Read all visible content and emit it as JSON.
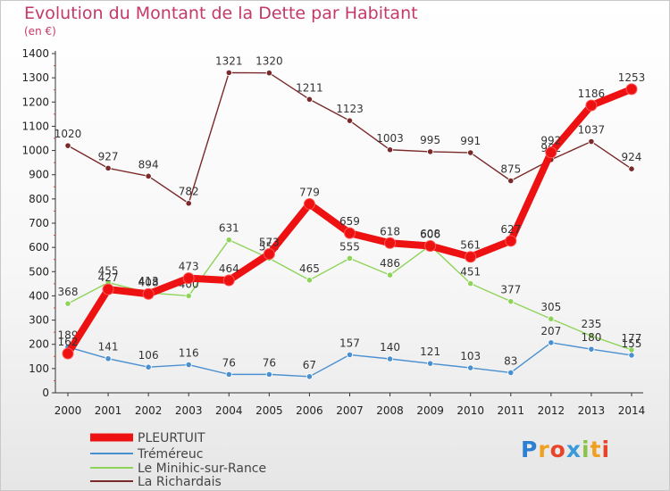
{
  "logo": {
    "text": "Proxiti",
    "letters": [
      "P",
      "r",
      "o",
      "x",
      "i",
      "t",
      "i"
    ],
    "colors": [
      "#2c7fd1",
      "#f0a020",
      "#e8442a",
      "#3a9ad9",
      "#8bc34a",
      "#f0a020",
      "#e8442a"
    ]
  },
  "chart_data": {
    "type": "line",
    "title": "Evolution du Montant de la Dette par Habitant",
    "subtitle": "(en €)",
    "x": [
      "2000",
      "2001",
      "2002",
      "2003",
      "2004",
      "2005",
      "2006",
      "2007",
      "2008",
      "2009",
      "2010",
      "2011",
      "2012",
      "2013",
      "2014"
    ],
    "ylim": [
      0,
      1400
    ],
    "yticks": [
      0,
      100,
      200,
      300,
      400,
      500,
      600,
      700,
      800,
      900,
      1000,
      1100,
      1200,
      1300,
      1400
    ],
    "grid": false,
    "legend_position": "bottom-left",
    "series": [
      {
        "name": "La Richardais",
        "color": "#7a2a2a",
        "values": [
          1020,
          927,
          894,
          782,
          1321,
          1320,
          1211,
          1123,
          1003,
          995,
          991,
          875,
          962,
          1037,
          924
        ],
        "labels": [
          "1020",
          "927",
          "894",
          "782",
          "1321",
          "1320",
          "1211",
          "1123",
          "1003",
          "995",
          "991",
          "875",
          "962",
          "1037",
          "924"
        ]
      },
      {
        "name": "Le Minihic-sur-Rance",
        "color": "#8fd45a",
        "values": [
          368,
          455,
          413,
          400,
          631,
          555,
          465,
          555,
          486,
          608,
          451,
          377,
          305,
          235,
          177
        ],
        "labels": [
          "368",
          "455",
          "413",
          "400",
          "631",
          "555",
          "465",
          "555",
          "486",
          "608",
          "451",
          "377",
          "305",
          "235",
          "177"
        ]
      },
      {
        "name": "Tréméreuc",
        "color": "#4a90d0",
        "values": [
          189,
          141,
          106,
          116,
          76,
          76,
          67,
          157,
          140,
          121,
          103,
          83,
          207,
          180,
          155
        ],
        "labels": [
          "189",
          "141",
          "106",
          "116",
          "76",
          "76",
          "67",
          "157",
          "140",
          "121",
          "103",
          "83",
          "207",
          "180",
          "155"
        ]
      },
      {
        "name": "PLEURTUIT",
        "color": "#ee1111",
        "values": [
          162,
          427,
          408,
          473,
          464,
          573,
          779,
          659,
          618,
          606,
          561,
          627,
          992,
          1186,
          1253
        ],
        "labels": [
          "162",
          "427",
          "408",
          "473",
          "464",
          "573",
          "779",
          "659",
          "618",
          "606",
          "561",
          "627",
          "992",
          "1186",
          "1253"
        ]
      }
    ],
    "legend": [
      "PLEURTUIT",
      "Tréméreuc",
      "Le Minihic-sur-Rance",
      "La Richardais"
    ]
  }
}
